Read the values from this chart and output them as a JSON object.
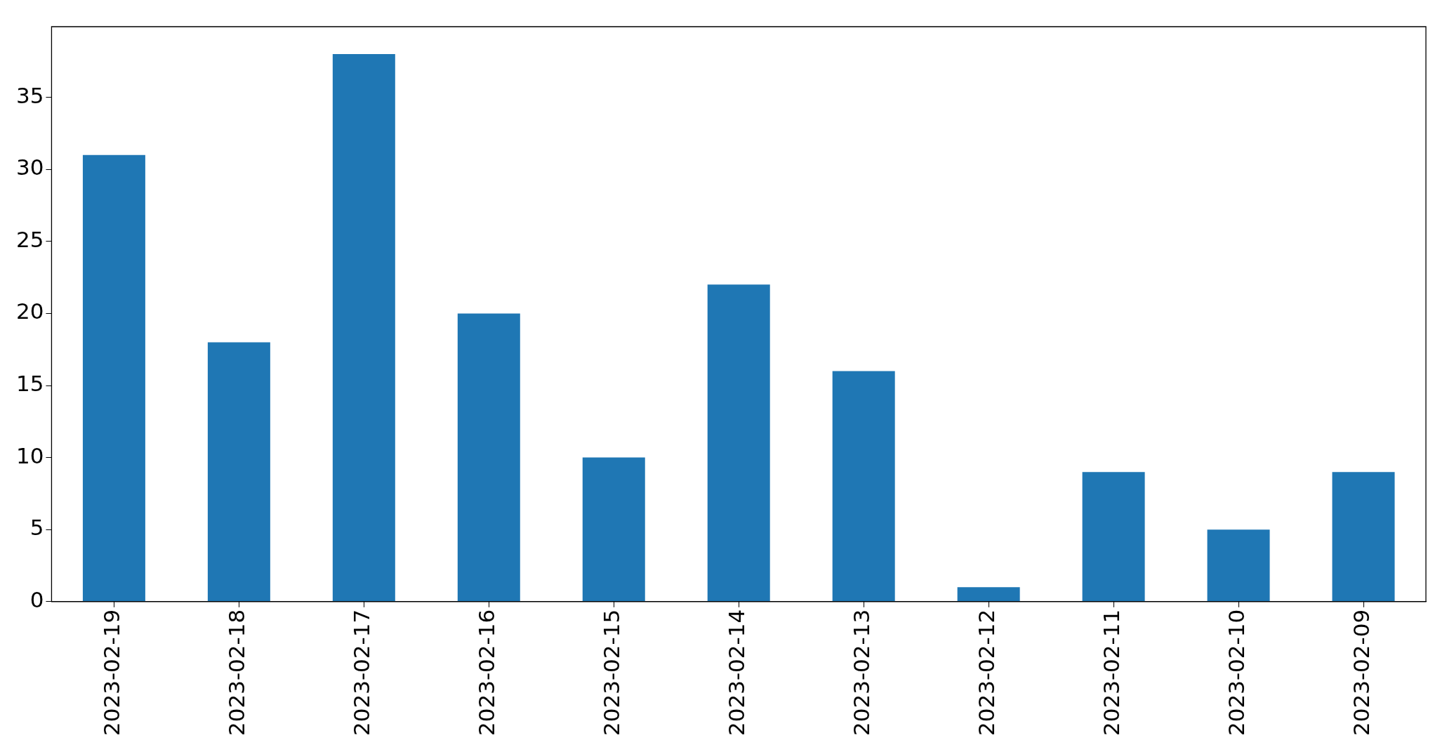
{
  "chart_data": {
    "type": "bar",
    "categories": [
      "2023-02-19",
      "2023-02-18",
      "2023-02-17",
      "2023-02-16",
      "2023-02-15",
      "2023-02-14",
      "2023-02-13",
      "2023-02-12",
      "2023-02-11",
      "2023-02-10",
      "2023-02-09"
    ],
    "values": [
      31,
      18,
      38,
      20,
      10,
      22,
      16,
      1,
      9,
      5,
      9
    ],
    "color": "#1f77b4",
    "ylim": [
      0,
      39.9
    ],
    "yticks": [
      0,
      5,
      10,
      15,
      20,
      25,
      30,
      35
    ],
    "grid": false,
    "legend": false
  }
}
